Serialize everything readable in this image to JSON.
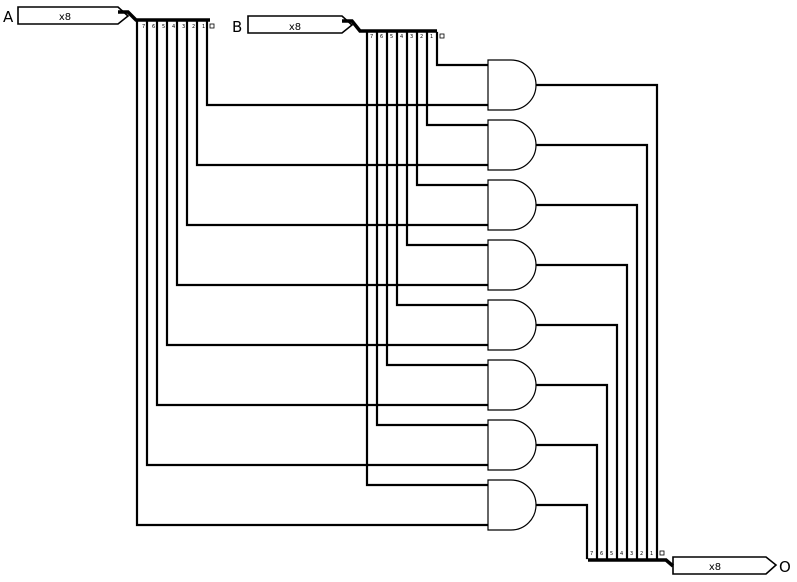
{
  "circuit": {
    "inputs": [
      {
        "name": "A",
        "width_label": "x8"
      },
      {
        "name": "B",
        "width_label": "x8"
      }
    ],
    "output": {
      "name": "O",
      "width_label": "x8"
    },
    "gate_type": "AND",
    "gate_count": 8,
    "bit_labels": [
      "7",
      "6",
      "5",
      "4",
      "3",
      "2",
      "1",
      "0"
    ]
  }
}
